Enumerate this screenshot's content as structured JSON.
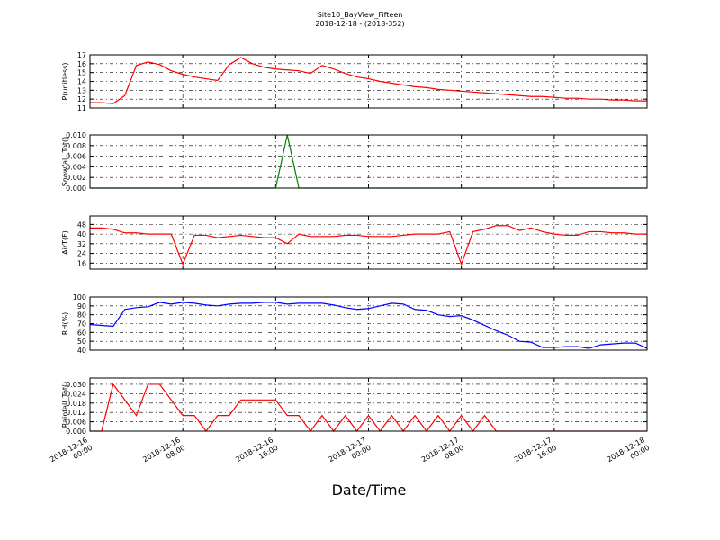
{
  "title": "Site10_BayView_Fifteen",
  "subtitle": "2018-12-18 - (2018-352)",
  "xlabel": "Date/Time",
  "chart_data": [
    {
      "type": "line",
      "ylabel": "P(unitless)",
      "ylim": [
        11,
        17
      ],
      "yticks": [
        11,
        12,
        13,
        14,
        15,
        16,
        17
      ],
      "grid": true,
      "xlim": [
        "2018-12-16 00:00",
        "2018-12-18 00:00"
      ],
      "xticks": [
        "2018-12-16 00:00",
        "2018-12-16 08:00",
        "2018-12-16 16:00",
        "2018-12-17 00:00",
        "2018-12-17 08:00",
        "2018-12-17 16:00",
        "2018-12-18 00:00"
      ],
      "x": [
        "2018-12-16 00:00",
        "2018-12-16 01:00",
        "2018-12-16 02:00",
        "2018-12-16 03:00",
        "2018-12-16 04:00",
        "2018-12-16 05:00",
        "2018-12-16 06:00",
        "2018-12-16 07:00",
        "2018-12-16 08:00",
        "2018-12-16 09:00",
        "2018-12-16 10:00",
        "2018-12-16 11:00",
        "2018-12-16 12:00",
        "2018-12-16 13:00",
        "2018-12-16 14:00",
        "2018-12-16 15:00",
        "2018-12-16 16:00",
        "2018-12-16 17:00",
        "2018-12-16 18:00",
        "2018-12-16 19:00",
        "2018-12-16 20:00",
        "2018-12-16 21:00",
        "2018-12-16 22:00",
        "2018-12-16 23:00",
        "2018-12-17 00:00",
        "2018-12-17 01:00",
        "2018-12-17 02:00",
        "2018-12-17 03:00",
        "2018-12-17 04:00",
        "2018-12-17 05:00",
        "2018-12-17 06:00",
        "2018-12-17 07:00",
        "2018-12-17 08:00",
        "2018-12-17 09:00",
        "2018-12-17 10:00",
        "2018-12-17 11:00",
        "2018-12-17 12:00",
        "2018-12-17 13:00",
        "2018-12-17 14:00",
        "2018-12-17 15:00",
        "2018-12-17 16:00",
        "2018-12-17 17:00",
        "2018-12-17 18:00",
        "2018-12-17 19:00",
        "2018-12-17 20:00",
        "2018-12-17 21:00",
        "2018-12-17 22:00",
        "2018-12-17 23:00",
        "2018-12-18 00:00"
      ],
      "series": [
        {
          "color": "#ff0000",
          "values": [
            11.6,
            11.6,
            11.5,
            12.4,
            15.8,
            16.2,
            15.9,
            15.2,
            14.8,
            14.5,
            14.3,
            14.1,
            15.9,
            16.7,
            16.0,
            15.6,
            15.4,
            15.3,
            15.2,
            14.9,
            15.8,
            15.4,
            14.9,
            14.5,
            14.3,
            14.0,
            13.8,
            13.6,
            13.4,
            13.3,
            13.1,
            13.0,
            12.9,
            12.8,
            12.7,
            12.6,
            12.5,
            12.4,
            12.3,
            12.3,
            12.2,
            12.1,
            12.1,
            12.0,
            12.0,
            11.9,
            11.9,
            11.8,
            11.8
          ]
        }
      ]
    },
    {
      "type": "line",
      "ylabel": "Snowfall_Tot()",
      "ylim": [
        0,
        0.01
      ],
      "grid": true,
      "yticks": [
        {
          "value": 0,
          "label": "0.000"
        },
        {
          "value": 0.002,
          "label": "0.002"
        },
        {
          "value": 0.004,
          "label": "0.004"
        },
        {
          "value": 0.006,
          "label": "0.006"
        },
        {
          "value": 0.008,
          "label": "0.008"
        },
        {
          "value": 0.01,
          "label": "0.010"
        }
      ],
      "xlim": [
        "2018-12-16 00:00",
        "2018-12-18 00:00"
      ],
      "xticks": [
        "2018-12-16 00:00",
        "2018-12-16 08:00",
        "2018-12-16 16:00",
        "2018-12-17 00:00",
        "2018-12-17 08:00",
        "2018-12-17 16:00",
        "2018-12-18 00:00"
      ],
      "x": [
        "2018-12-16 00:00",
        "2018-12-16 01:00",
        "2018-12-16 02:00",
        "2018-12-16 03:00",
        "2018-12-16 04:00",
        "2018-12-16 05:00",
        "2018-12-16 06:00",
        "2018-12-16 07:00",
        "2018-12-16 08:00",
        "2018-12-16 09:00",
        "2018-12-16 10:00",
        "2018-12-16 11:00",
        "2018-12-16 12:00",
        "2018-12-16 13:00",
        "2018-12-16 14:00",
        "2018-12-16 15:00",
        "2018-12-16 16:00",
        "2018-12-16 17:00",
        "2018-12-16 18:00",
        "2018-12-16 19:00",
        "2018-12-16 20:00",
        "2018-12-16 21:00",
        "2018-12-16 22:00",
        "2018-12-16 23:00",
        "2018-12-17 00:00",
        "2018-12-17 01:00",
        "2018-12-17 02:00",
        "2018-12-17 03:00",
        "2018-12-17 04:00",
        "2018-12-17 05:00",
        "2018-12-17 06:00",
        "2018-12-17 07:00",
        "2018-12-17 08:00",
        "2018-12-17 09:00",
        "2018-12-17 10:00",
        "2018-12-17 11:00",
        "2018-12-17 12:00",
        "2018-12-17 13:00",
        "2018-12-17 14:00",
        "2018-12-17 15:00",
        "2018-12-17 16:00",
        "2018-12-17 17:00",
        "2018-12-17 18:00",
        "2018-12-17 19:00",
        "2018-12-17 20:00",
        "2018-12-17 21:00",
        "2018-12-17 22:00",
        "2018-12-17 23:00",
        "2018-12-18 00:00"
      ],
      "series": [
        {
          "color": "#008000",
          "values": [
            0,
            0,
            0,
            0,
            0,
            0,
            0,
            0,
            0,
            0,
            0,
            0,
            0,
            0,
            0,
            0,
            0,
            0.01,
            0,
            0,
            0,
            0,
            0,
            0,
            0,
            0,
            0,
            0,
            0,
            0,
            0,
            0,
            0,
            0,
            0,
            0,
            0,
            0,
            0,
            0,
            0,
            0,
            0,
            0,
            0,
            0,
            0,
            0,
            0
          ]
        }
      ]
    },
    {
      "type": "line",
      "ylabel": "AirT(F)",
      "ylim": [
        11,
        55
      ],
      "yticks": [
        16,
        24,
        32,
        40,
        48
      ],
      "grid": true,
      "xlim": [
        "2018-12-16 00:00",
        "2018-12-18 00:00"
      ],
      "xticks": [
        "2018-12-16 00:00",
        "2018-12-16 08:00",
        "2018-12-16 16:00",
        "2018-12-17 00:00",
        "2018-12-17 08:00",
        "2018-12-17 16:00",
        "2018-12-18 00:00"
      ],
      "x": [
        "2018-12-16 00:00",
        "2018-12-16 01:00",
        "2018-12-16 02:00",
        "2018-12-16 03:00",
        "2018-12-16 04:00",
        "2018-12-16 05:00",
        "2018-12-16 06:00",
        "2018-12-16 07:00",
        "2018-12-16 08:00",
        "2018-12-16 09:00",
        "2018-12-16 10:00",
        "2018-12-16 11:00",
        "2018-12-16 12:00",
        "2018-12-16 13:00",
        "2018-12-16 14:00",
        "2018-12-16 15:00",
        "2018-12-16 16:00",
        "2018-12-16 17:00",
        "2018-12-16 18:00",
        "2018-12-16 19:00",
        "2018-12-16 20:00",
        "2018-12-16 21:00",
        "2018-12-16 22:00",
        "2018-12-16 23:00",
        "2018-12-17 00:00",
        "2018-12-17 01:00",
        "2018-12-17 02:00",
        "2018-12-17 03:00",
        "2018-12-17 04:00",
        "2018-12-17 05:00",
        "2018-12-17 06:00",
        "2018-12-17 07:00",
        "2018-12-17 08:00",
        "2018-12-17 09:00",
        "2018-12-17 10:00",
        "2018-12-17 11:00",
        "2018-12-17 12:00",
        "2018-12-17 13:00",
        "2018-12-17 14:00",
        "2018-12-17 15:00",
        "2018-12-17 16:00",
        "2018-12-17 17:00",
        "2018-12-17 18:00",
        "2018-12-17 19:00",
        "2018-12-17 20:00",
        "2018-12-17 21:00",
        "2018-12-17 22:00",
        "2018-12-17 23:00",
        "2018-12-18 00:00"
      ],
      "series": [
        {
          "color": "#ff0000",
          "values": [
            45,
            45,
            44,
            41,
            41,
            40,
            40,
            40,
            15,
            39,
            39,
            37,
            38,
            39,
            38,
            37,
            37,
            32,
            40,
            38,
            38,
            38,
            39,
            39,
            38,
            38,
            38,
            39,
            40,
            40,
            40,
            42,
            15,
            42,
            44,
            47,
            47,
            43,
            45,
            42,
            40,
            39,
            39,
            42,
            42,
            41,
            41,
            40,
            40
          ]
        }
      ]
    },
    {
      "type": "line",
      "ylabel": "RH(%)",
      "ylim": [
        40,
        100
      ],
      "yticks": [
        40,
        50,
        60,
        70,
        80,
        90,
        100
      ],
      "grid": true,
      "xlim": [
        "2018-12-16 00:00",
        "2018-12-18 00:00"
      ],
      "xticks": [
        "2018-12-16 00:00",
        "2018-12-16 08:00",
        "2018-12-16 16:00",
        "2018-12-17 00:00",
        "2018-12-17 08:00",
        "2018-12-17 16:00",
        "2018-12-18 00:00"
      ],
      "x": [
        "2018-12-16 00:00",
        "2018-12-16 01:00",
        "2018-12-16 02:00",
        "2018-12-16 03:00",
        "2018-12-16 04:00",
        "2018-12-16 05:00",
        "2018-12-16 06:00",
        "2018-12-16 07:00",
        "2018-12-16 08:00",
        "2018-12-16 09:00",
        "2018-12-16 10:00",
        "2018-12-16 11:00",
        "2018-12-16 12:00",
        "2018-12-16 13:00",
        "2018-12-16 14:00",
        "2018-12-16 15:00",
        "2018-12-16 16:00",
        "2018-12-16 17:00",
        "2018-12-16 18:00",
        "2018-12-16 19:00",
        "2018-12-16 20:00",
        "2018-12-16 21:00",
        "2018-12-16 22:00",
        "2018-12-16 23:00",
        "2018-12-17 00:00",
        "2018-12-17 01:00",
        "2018-12-17 02:00",
        "2018-12-17 03:00",
        "2018-12-17 04:00",
        "2018-12-17 05:00",
        "2018-12-17 06:00",
        "2018-12-17 07:00",
        "2018-12-17 08:00",
        "2018-12-17 09:00",
        "2018-12-17 10:00",
        "2018-12-17 11:00",
        "2018-12-17 12:00",
        "2018-12-17 13:00",
        "2018-12-17 14:00",
        "2018-12-17 15:00",
        "2018-12-17 16:00",
        "2018-12-17 17:00",
        "2018-12-17 18:00",
        "2018-12-17 19:00",
        "2018-12-17 20:00",
        "2018-12-17 21:00",
        "2018-12-17 22:00",
        "2018-12-17 23:00",
        "2018-12-18 00:00"
      ],
      "series": [
        {
          "color": "#0000ff",
          "values": [
            69,
            68,
            67,
            86,
            88,
            89,
            94,
            92,
            94,
            93,
            91,
            90,
            92,
            93,
            93,
            94,
            94,
            92,
            93,
            93,
            93,
            91,
            88,
            86,
            87,
            90,
            93,
            92,
            86,
            85,
            80,
            78,
            79,
            74,
            68,
            62,
            57,
            50,
            49,
            43,
            43,
            44,
            44,
            42,
            46,
            47,
            48,
            48,
            42
          ]
        }
      ]
    },
    {
      "type": "line",
      "ylabel": "Rainfall_Tot()",
      "ylim": [
        0,
        0.034
      ],
      "grid": true,
      "yticks": [
        {
          "value": 0,
          "label": "0.000"
        },
        {
          "value": 0.006,
          "label": "0.006"
        },
        {
          "value": 0.012,
          "label": "0.012"
        },
        {
          "value": 0.018,
          "label": "0.018"
        },
        {
          "value": 0.024,
          "label": "0.024"
        },
        {
          "value": 0.03,
          "label": "0.030"
        }
      ],
      "xlim": [
        "2018-12-16 00:00",
        "2018-12-18 00:00"
      ],
      "xticks": [
        "2018-12-16 00:00",
        "2018-12-16 08:00",
        "2018-12-16 16:00",
        "2018-12-17 00:00",
        "2018-12-17 08:00",
        "2018-12-17 16:00",
        "2018-12-18 00:00"
      ],
      "x": [
        "2018-12-16 00:00",
        "2018-12-16 01:00",
        "2018-12-16 02:00",
        "2018-12-16 03:00",
        "2018-12-16 04:00",
        "2018-12-16 05:00",
        "2018-12-16 06:00",
        "2018-12-16 07:00",
        "2018-12-16 08:00",
        "2018-12-16 09:00",
        "2018-12-16 10:00",
        "2018-12-16 11:00",
        "2018-12-16 12:00",
        "2018-12-16 13:00",
        "2018-12-16 14:00",
        "2018-12-16 15:00",
        "2018-12-16 16:00",
        "2018-12-16 17:00",
        "2018-12-16 18:00",
        "2018-12-16 19:00",
        "2018-12-16 20:00",
        "2018-12-16 21:00",
        "2018-12-16 22:00",
        "2018-12-16 23:00",
        "2018-12-17 00:00",
        "2018-12-17 01:00",
        "2018-12-17 02:00",
        "2018-12-17 03:00",
        "2018-12-17 04:00",
        "2018-12-17 05:00",
        "2018-12-17 06:00",
        "2018-12-17 07:00",
        "2018-12-17 08:00",
        "2018-12-17 09:00",
        "2018-12-17 10:00",
        "2018-12-17 11:00",
        "2018-12-17 12:00",
        "2018-12-17 13:00",
        "2018-12-17 14:00",
        "2018-12-17 15:00",
        "2018-12-17 16:00",
        "2018-12-17 17:00",
        "2018-12-17 18:00",
        "2018-12-17 19:00",
        "2018-12-17 20:00",
        "2018-12-17 21:00",
        "2018-12-17 22:00",
        "2018-12-17 23:00",
        "2018-12-18 00:00"
      ],
      "series": [
        {
          "color": "#ff0000",
          "values": [
            0,
            0,
            0.03,
            0.02,
            0.01,
            0.03,
            0.03,
            0.02,
            0.01,
            0.01,
            0,
            0.01,
            0.01,
            0.02,
            0.02,
            0.02,
            0.02,
            0.01,
            0.01,
            0,
            0.01,
            0,
            0.01,
            0,
            0.01,
            0,
            0.01,
            0,
            0.01,
            0,
            0.01,
            0,
            0.01,
            0,
            0.01,
            0,
            0,
            0,
            0,
            0,
            0,
            0,
            0,
            0,
            0,
            0,
            0,
            0,
            0
          ]
        }
      ]
    }
  ]
}
